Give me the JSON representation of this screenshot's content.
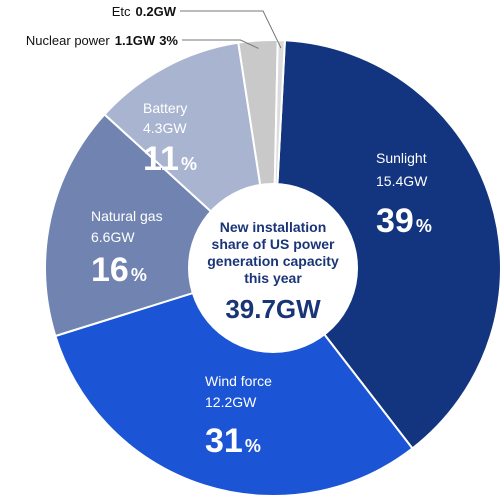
{
  "chart_data": {
    "type": "pie",
    "title_lines": [
      "New installation",
      "share of US power",
      "generation capacity",
      "this year"
    ],
    "total": "39.7GW",
    "slices": [
      {
        "name": "Sunlight",
        "value": 15.4,
        "value_label": "15.4GW",
        "pct": "39",
        "color": "#13357f"
      },
      {
        "name": "Wind force",
        "value": 12.2,
        "value_label": "12.2GW",
        "pct": "31",
        "color": "#1b55d6"
      },
      {
        "name": "Natural gas",
        "value": 6.6,
        "value_label": "6.6GW",
        "pct": "16",
        "color": "#7184b1"
      },
      {
        "name": "Battery",
        "value": 4.3,
        "value_label": "4.3GW",
        "pct": "11",
        "color": "#a9b5d0"
      },
      {
        "name": "Nuclear power",
        "value": 1.1,
        "value_label": "1.1GW",
        "pct": "3%",
        "color": "#c9c9c9"
      },
      {
        "name": "Etc",
        "value": 0.2,
        "value_label": "0.2GW",
        "pct": "",
        "color": "#dcdcdc"
      }
    ],
    "percent_sign": "%"
  }
}
